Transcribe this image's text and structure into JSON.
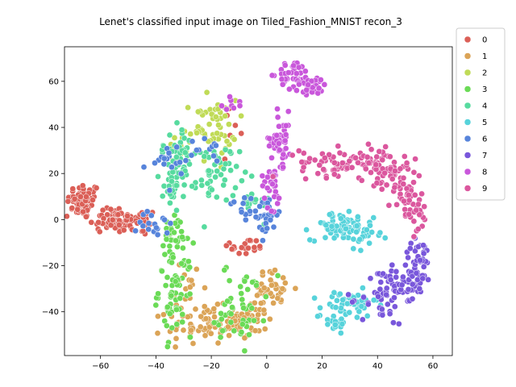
{
  "chart_data": {
    "type": "scatter",
    "title": "Lenet's classified input image on Tiled_Fashion_MNIST recon_3",
    "xlabel": "",
    "ylabel": "",
    "xlim": [
      -73,
      67
    ],
    "ylim": [
      -59,
      75
    ],
    "xticks": [
      -60,
      -40,
      -20,
      0,
      20,
      40,
      60
    ],
    "yticks": [
      -40,
      -20,
      0,
      20,
      40,
      60
    ],
    "grid": false,
    "legend_position": "outside-right",
    "series": [
      {
        "name": "0",
        "color": "#db5f57",
        "clusters": [
          {
            "cx": -66,
            "cy": 8,
            "sx": 3,
            "sy": 4,
            "n": 65
          },
          {
            "cx": -56,
            "cy": 0,
            "sx": 4,
            "sy": 3,
            "n": 55
          },
          {
            "cx": -47,
            "cy": -1,
            "sx": 4,
            "sy": 3,
            "n": 35
          },
          {
            "cx": -8,
            "cy": -12,
            "sx": 4,
            "sy": 2,
            "n": 22
          },
          {
            "cx": -12,
            "cy": 43,
            "sx": 2,
            "sy": 4,
            "n": 6
          }
        ]
      },
      {
        "name": "1",
        "color": "#dba457",
        "clusters": [
          {
            "cx": -22,
            "cy": -46,
            "sx": 7,
            "sy": 4,
            "n": 70
          },
          {
            "cx": -6,
            "cy": -42,
            "sx": 3,
            "sy": 6,
            "n": 40
          },
          {
            "cx": 2,
            "cy": -30,
            "sx": 4,
            "sy": 4,
            "n": 35
          },
          {
            "cx": -27,
            "cy": -30,
            "sx": 3,
            "sy": 6,
            "n": 18
          }
        ]
      },
      {
        "name": "2",
        "color": "#c0db57",
        "clusters": [
          {
            "cx": -21,
            "cy": 40,
            "sx": 5,
            "sy": 6,
            "n": 55
          },
          {
            "cx": -31,
            "cy": 30,
            "sx": 3,
            "sy": 4,
            "n": 12
          }
        ]
      },
      {
        "name": "3",
        "color": "#6bdb57",
        "clusters": [
          {
            "cx": -33,
            "cy": -30,
            "sx": 3,
            "sy": 10,
            "n": 70
          },
          {
            "cx": -33,
            "cy": -8,
            "sx": 3,
            "sy": 5,
            "n": 25
          },
          {
            "cx": -8,
            "cy": -35,
            "sx": 4,
            "sy": 8,
            "n": 40
          },
          {
            "cx": -15,
            "cy": -47,
            "sx": 3,
            "sy": 3,
            "n": 12
          }
        ]
      },
      {
        "name": "4",
        "color": "#57db9f",
        "clusters": [
          {
            "cx": -33,
            "cy": 30,
            "sx": 3,
            "sy": 6,
            "n": 40
          },
          {
            "cx": -33,
            "cy": 15,
            "sx": 2,
            "sy": 5,
            "n": 25
          },
          {
            "cx": -20,
            "cy": 20,
            "sx": 5,
            "sy": 6,
            "n": 55
          },
          {
            "cx": -5,
            "cy": 7,
            "sx": 3,
            "sy": 3,
            "n": 18
          }
        ]
      },
      {
        "name": "5",
        "color": "#57d3db",
        "clusters": [
          {
            "cx": 26,
            "cy": -3,
            "sx": 5,
            "sy": 3,
            "n": 65
          },
          {
            "cx": 36,
            "cy": -6,
            "sx": 3,
            "sy": 3,
            "n": 25
          },
          {
            "cx": 30,
            "cy": -37,
            "sx": 5,
            "sy": 3,
            "n": 50
          },
          {
            "cx": 24,
            "cy": -44,
            "sx": 3,
            "sy": 2,
            "n": 20
          }
        ]
      },
      {
        "name": "6",
        "color": "#5784db",
        "clusters": [
          {
            "cx": -36,
            "cy": 26,
            "sx": 4,
            "sy": 3,
            "n": 20
          },
          {
            "cx": -40,
            "cy": -1,
            "sx": 3,
            "sy": 4,
            "n": 18
          },
          {
            "cx": 0,
            "cy": 2,
            "sx": 2,
            "sy": 5,
            "n": 25
          },
          {
            "cx": -20,
            "cy": 30,
            "sx": 3,
            "sy": 3,
            "n": 10
          },
          {
            "cx": -8,
            "cy": 5,
            "sx": 3,
            "sy": 3,
            "n": 12
          }
        ]
      },
      {
        "name": "7",
        "color": "#7957db",
        "clusters": [
          {
            "cx": 42,
            "cy": -34,
            "sx": 4,
            "sy": 6,
            "n": 45
          },
          {
            "cx": 50,
            "cy": -28,
            "sx": 4,
            "sy": 4,
            "n": 45
          },
          {
            "cx": 55,
            "cy": -18,
            "sx": 3,
            "sy": 5,
            "n": 40
          }
        ]
      },
      {
        "name": "8",
        "color": "#c957db",
        "clusters": [
          {
            "cx": 10,
            "cy": 63,
            "sx": 3,
            "sy": 3,
            "n": 45
          },
          {
            "cx": 16,
            "cy": 58,
            "sx": 3,
            "sy": 2,
            "n": 30
          },
          {
            "cx": 5,
            "cy": 35,
            "sx": 2,
            "sy": 6,
            "n": 45
          },
          {
            "cx": 2,
            "cy": 15,
            "sx": 2,
            "sy": 5,
            "n": 30
          },
          {
            "cx": -13,
            "cy": 50,
            "sx": 2,
            "sy": 2,
            "n": 8
          }
        ]
      },
      {
        "name": "9",
        "color": "#db579e",
        "clusters": [
          {
            "cx": 28,
            "cy": 25,
            "sx": 8,
            "sy": 3,
            "n": 75
          },
          {
            "cx": 42,
            "cy": 22,
            "sx": 4,
            "sy": 4,
            "n": 45
          },
          {
            "cx": 50,
            "cy": 12,
            "sx": 3,
            "sy": 5,
            "n": 45
          },
          {
            "cx": 54,
            "cy": 2,
            "sx": 2,
            "sy": 4,
            "n": 20
          }
        ]
      }
    ]
  }
}
